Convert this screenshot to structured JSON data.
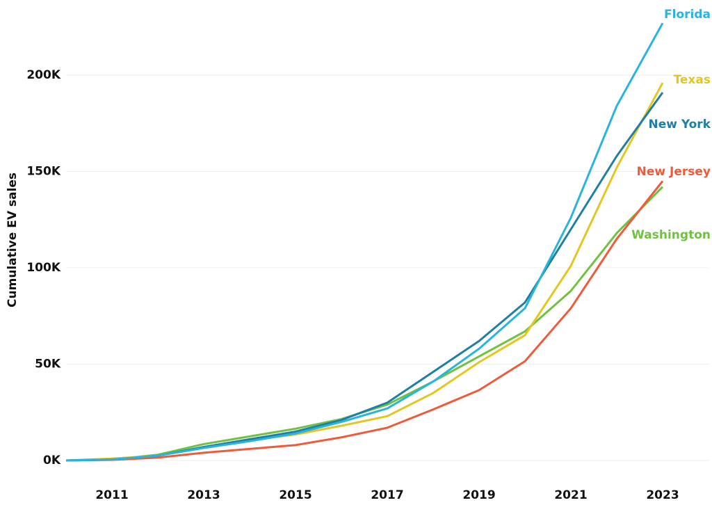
{
  "chart_data": {
    "type": "line",
    "y_label": "Cumulative EV sales",
    "x": [
      2010,
      2011,
      2012,
      2013,
      2014,
      2015,
      2016,
      2017,
      2018,
      2019,
      2020,
      2021,
      2022,
      2023
    ],
    "xlim": [
      2010,
      2024
    ],
    "xticks": [
      2011,
      2013,
      2015,
      2017,
      2019,
      2021,
      2023
    ],
    "ylim": [
      0,
      239000
    ],
    "yticks": [
      {
        "value": 0,
        "label": "0K"
      },
      {
        "value": 50000,
        "label": "50K"
      },
      {
        "value": 100000,
        "label": "100K"
      },
      {
        "value": 150000,
        "label": "150K"
      },
      {
        "value": 200000,
        "label": "200K"
      }
    ],
    "grid": true,
    "series": [
      {
        "name": "Washington",
        "color": "#6fc23f",
        "values": [
          0,
          500,
          3000,
          8500,
          12500,
          16500,
          21500,
          29000,
          41000,
          54000,
          67000,
          88000,
          118000,
          142000
        ]
      },
      {
        "name": "New Jersey",
        "color": "#ef5a3a",
        "values": [
          0,
          300,
          1500,
          4000,
          6000,
          8000,
          12000,
          17000,
          26500,
          36500,
          51500,
          79000,
          115000,
          145000
        ]
      },
      {
        "name": "Texas",
        "color": "#e3c61f",
        "values": [
          0,
          1000,
          2500,
          7000,
          10500,
          13500,
          18000,
          23000,
          35000,
          51000,
          65000,
          101000,
          152000,
          196000
        ]
      },
      {
        "name": "New York",
        "color": "#1f7fa3",
        "values": [
          0,
          500,
          2500,
          7000,
          11000,
          15000,
          21000,
          30000,
          46000,
          62000,
          82000,
          120000,
          158000,
          191000
        ]
      },
      {
        "name": "Florida",
        "color": "#29b3df",
        "values": [
          0,
          500,
          2500,
          6500,
          10000,
          14000,
          20000,
          27000,
          41000,
          58000,
          79000,
          126000,
          184000,
          227000
        ]
      }
    ]
  }
}
